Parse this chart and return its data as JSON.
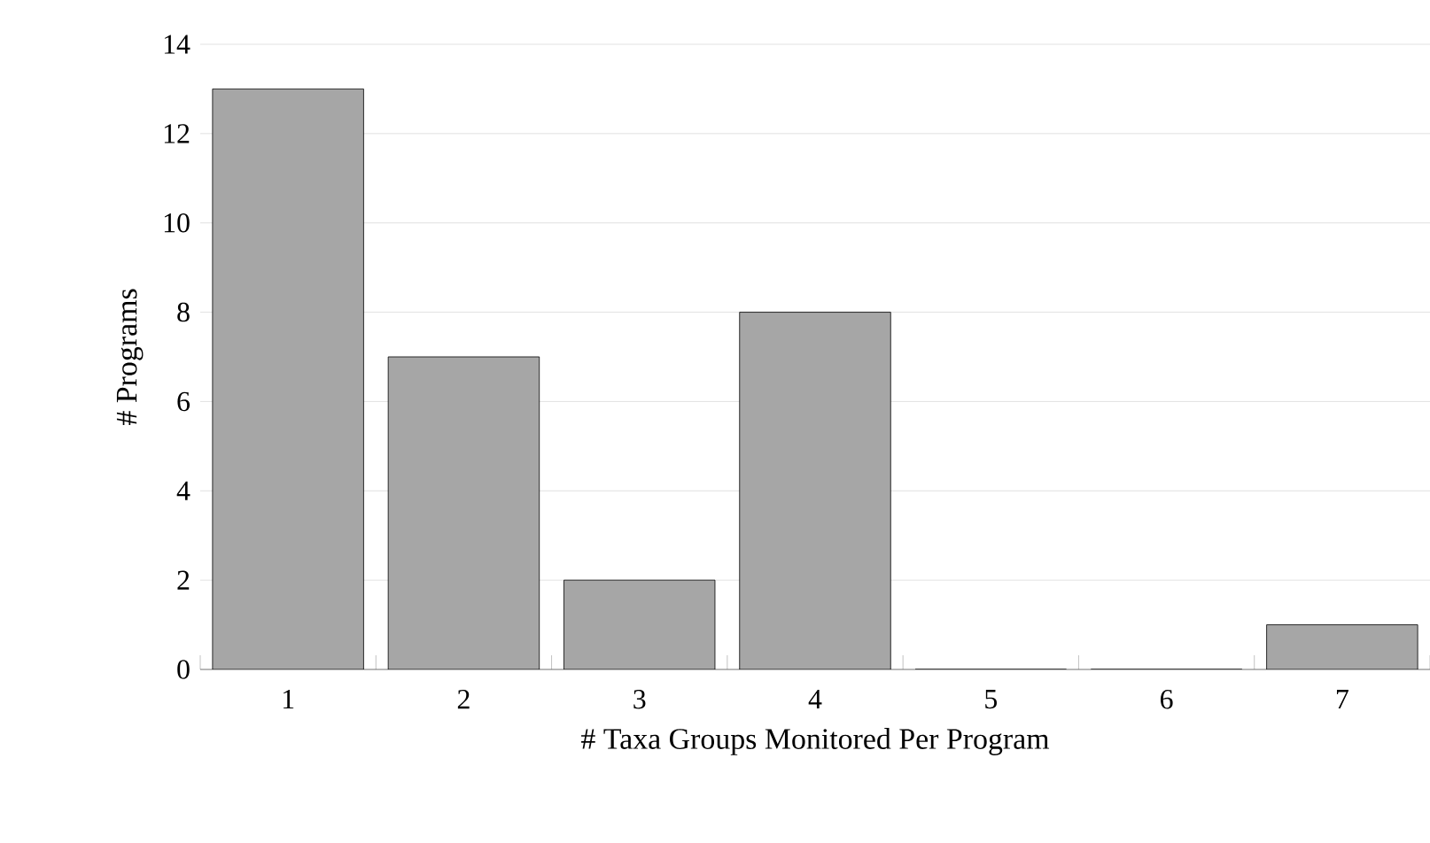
{
  "chart_data": {
    "type": "bar",
    "xlabel": "# Taxa Groups Monitored Per Program",
    "ylabel": "# Programs",
    "categories": [
      "1",
      "2",
      "3",
      "4",
      "5",
      "6",
      "7"
    ],
    "values": [
      13,
      7,
      2,
      8,
      0,
      0,
      1
    ],
    "color": "#a6a6a6",
    "ylim": [
      0,
      14
    ],
    "yticks": [
      0,
      2,
      4,
      6,
      8,
      10,
      12,
      14
    ],
    "grid": "y"
  }
}
